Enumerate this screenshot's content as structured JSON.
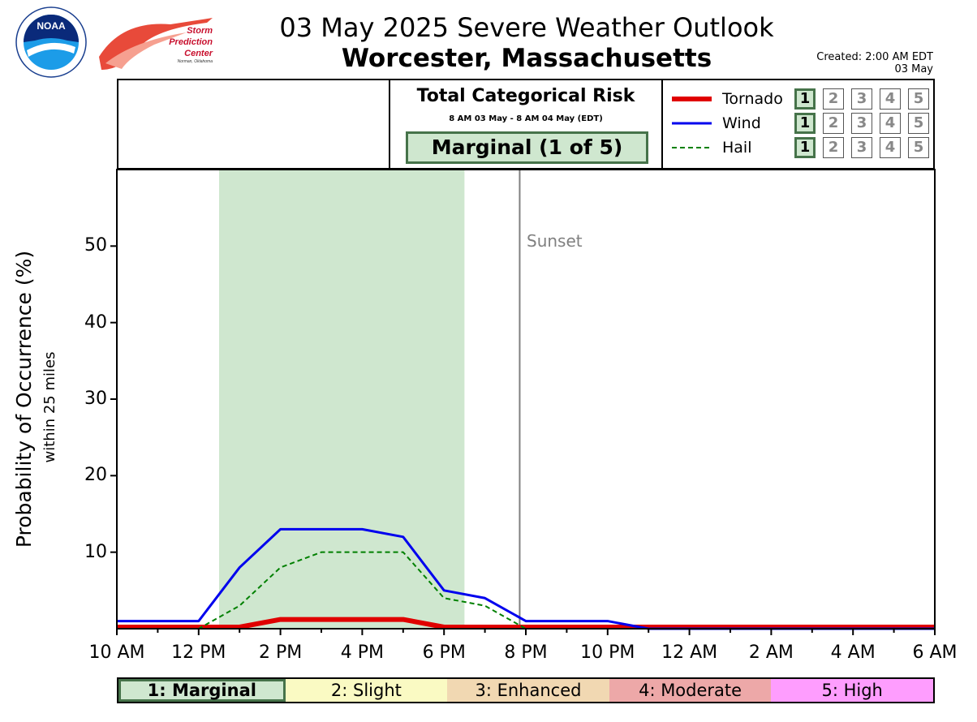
{
  "header": {
    "title": "03 May 2025 Severe Weather Outlook",
    "subtitle": "Worcester, Massachusetts",
    "created_line1": "Created: 2:00 AM EDT",
    "created_line2": "03 May",
    "logo_noaa_text": "NOAA",
    "logo_spc_line1": "Storm",
    "logo_spc_line2": "Prediction",
    "logo_spc_line3": "Center",
    "logo_spc_line4": "Norman, Oklahoma"
  },
  "risk": {
    "title": "Total Categorical Risk",
    "period": "8 AM 03 May - 8 AM 04 May (EDT)",
    "category": "Marginal (1 of 5)",
    "category_color": "#cfe7cf"
  },
  "legend": [
    {
      "name": "Tornado",
      "color": "#e00000",
      "style": "solid-thick",
      "level": 1,
      "levels": [
        "1",
        "2",
        "3",
        "4",
        "5"
      ]
    },
    {
      "name": "Wind",
      "color": "#0000ee",
      "style": "solid",
      "level": 1,
      "levels": [
        "1",
        "2",
        "3",
        "4",
        "5"
      ]
    },
    {
      "name": "Hail",
      "color": "#008000",
      "style": "dashed",
      "level": 1,
      "levels": [
        "1",
        "2",
        "3",
        "4",
        "5"
      ]
    }
  ],
  "categories": [
    {
      "label": "1: Marginal",
      "color": "#cfe7cf",
      "active": true
    },
    {
      "label": "2: Slight",
      "color": "#fafac3",
      "active": false
    },
    {
      "label": "3: Enhanced",
      "color": "#f1d8b2",
      "active": false
    },
    {
      "label": "4: Moderate",
      "color": "#eda8a8",
      "active": false
    },
    {
      "label": "5: High",
      "color": "#fe9dfe",
      "active": false
    }
  ],
  "chart_data": {
    "type": "line",
    "ylabel": "Probability of Occurrence (%)",
    "ylabel_sub": "within 25 miles",
    "ylim": [
      0,
      60
    ],
    "yticks": [
      10,
      20,
      30,
      40,
      50
    ],
    "xlim": [
      0,
      20
    ],
    "xticks": [
      {
        "x": 0,
        "label": "10 AM"
      },
      {
        "x": 2,
        "label": "12 PM"
      },
      {
        "x": 4,
        "label": "2 PM"
      },
      {
        "x": 6,
        "label": "4 PM"
      },
      {
        "x": 8,
        "label": "6 PM"
      },
      {
        "x": 10,
        "label": "8 PM"
      },
      {
        "x": 12,
        "label": "10 PM"
      },
      {
        "x": 14,
        "label": "12 AM"
      },
      {
        "x": 16,
        "label": "2 AM"
      },
      {
        "x": 18,
        "label": "4 AM"
      },
      {
        "x": 20,
        "label": "6 AM"
      }
    ],
    "x_unit": "hours after 10 AM",
    "highlight_span": {
      "x0": 2.5,
      "x1": 8.5,
      "color": "#cfe7cf"
    },
    "sunset": {
      "x": 9.85,
      "label": "Sunset"
    },
    "series": [
      {
        "name": "Tornado",
        "color": "#e00000",
        "x": [
          0,
          1,
          2,
          3,
          4,
          5,
          6,
          7,
          8,
          9,
          10,
          11,
          12,
          13,
          14,
          15,
          16,
          17,
          18,
          19,
          20
        ],
        "values": [
          0,
          0,
          0,
          0,
          1,
          1,
          1,
          1,
          0,
          0,
          0,
          0,
          0,
          0,
          0,
          0,
          0,
          0,
          0,
          0,
          0
        ]
      },
      {
        "name": "Wind",
        "color": "#0000ee",
        "x": [
          0,
          1,
          2,
          3,
          4,
          5,
          6,
          7,
          8,
          9,
          10,
          11,
          12,
          13,
          14,
          15,
          16,
          17,
          18,
          19,
          20
        ],
        "values": [
          1,
          1,
          1,
          8,
          13,
          13,
          13,
          12,
          5,
          4,
          1,
          1,
          1,
          0,
          0,
          0,
          0,
          0,
          0,
          0,
          0
        ]
      },
      {
        "name": "Hail",
        "color": "#008000",
        "x": [
          0,
          1,
          2,
          3,
          4,
          5,
          6,
          7,
          8,
          9,
          10,
          11,
          12,
          13,
          14,
          15,
          16,
          17,
          18,
          19,
          20
        ],
        "values": [
          0,
          0,
          0,
          3,
          8,
          10,
          10,
          10,
          4,
          3,
          0,
          0,
          0,
          0,
          0,
          0,
          0,
          0,
          0,
          0,
          0
        ]
      }
    ]
  }
}
